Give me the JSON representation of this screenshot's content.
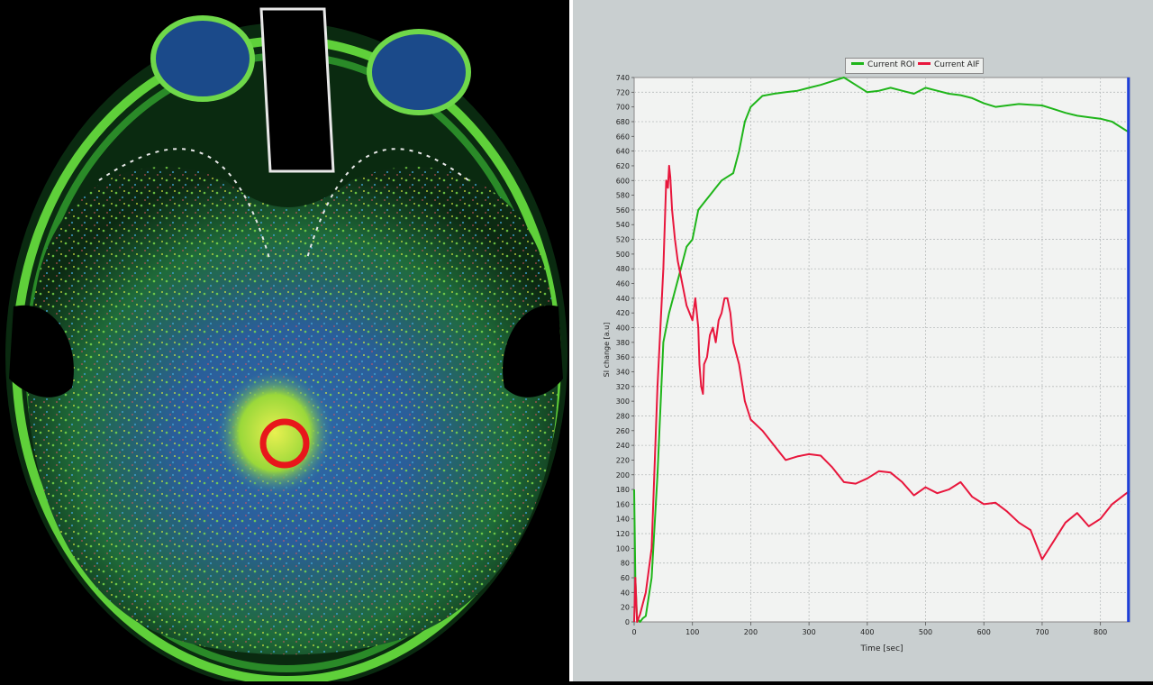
{
  "image": {
    "description_icon": "brain-perfusion-map-icon",
    "roi_color": "#e8161b"
  },
  "chart_data": {
    "type": "line",
    "xlabel": "Time [sec]",
    "ylabel": "SI change [a.u]",
    "xlim": [
      0,
      850
    ],
    "ylim": [
      0,
      740
    ],
    "x_ticks": [
      0,
      100,
      200,
      300,
      400,
      500,
      600,
      700,
      800
    ],
    "y_ticks": [
      0,
      20,
      40,
      60,
      80,
      100,
      120,
      140,
      160,
      180,
      200,
      220,
      240,
      260,
      280,
      300,
      320,
      340,
      360,
      380,
      400,
      420,
      440,
      460,
      480,
      500,
      520,
      540,
      560,
      580,
      600,
      620,
      640,
      660,
      680,
      700,
      720,
      740
    ],
    "grid": true,
    "legend_position": "top-center",
    "cursor_x": 848,
    "series": [
      {
        "name": "Current ROI",
        "color": "#1fb51a",
        "x": [
          0,
          2,
          5,
          10,
          15,
          20,
          30,
          40,
          50,
          60,
          70,
          80,
          90,
          100,
          110,
          120,
          130,
          140,
          150,
          160,
          170,
          180,
          190,
          200,
          220,
          240,
          260,
          280,
          300,
          320,
          340,
          360,
          380,
          400,
          420,
          440,
          460,
          480,
          500,
          520,
          540,
          560,
          580,
          600,
          620,
          640,
          660,
          680,
          700,
          720,
          740,
          760,
          780,
          800,
          820,
          840,
          850
        ],
        "values": [
          180,
          60,
          5,
          0,
          5,
          8,
          60,
          200,
          380,
          420,
          450,
          480,
          510,
          520,
          560,
          570,
          580,
          590,
          600,
          605,
          610,
          640,
          680,
          700,
          715,
          718,
          720,
          722,
          726,
          730,
          735,
          740,
          730,
          720,
          722,
          726,
          722,
          718,
          726,
          722,
          718,
          716,
          712,
          705,
          700,
          702,
          704,
          703,
          702,
          697,
          692,
          688,
          686,
          684,
          680,
          670,
          665
        ]
      },
      {
        "name": "Current AIF",
        "color": "#e8163c",
        "x": [
          0,
          2,
          5,
          10,
          20,
          30,
          40,
          50,
          55,
          58,
          60,
          62,
          65,
          70,
          75,
          80,
          85,
          90,
          95,
          100,
          105,
          110,
          112,
          115,
          118,
          120,
          125,
          130,
          135,
          140,
          145,
          150,
          155,
          160,
          165,
          170,
          180,
          190,
          200,
          220,
          240,
          260,
          280,
          300,
          320,
          340,
          360,
          380,
          400,
          420,
          440,
          460,
          480,
          500,
          520,
          540,
          560,
          580,
          600,
          620,
          640,
          660,
          680,
          700,
          720,
          740,
          760,
          780,
          800,
          820,
          840,
          850
        ],
        "values": [
          0,
          60,
          0,
          10,
          40,
          100,
          320,
          480,
          600,
          590,
          620,
          605,
          560,
          520,
          490,
          470,
          450,
          430,
          420,
          410,
          440,
          400,
          350,
          320,
          310,
          350,
          360,
          390,
          400,
          380,
          410,
          420,
          440,
          440,
          420,
          380,
          350,
          300,
          275,
          260,
          240,
          220,
          225,
          228,
          226,
          210,
          190,
          188,
          195,
          205,
          203,
          190,
          172,
          183,
          175,
          180,
          190,
          170,
          160,
          162,
          150,
          135,
          125,
          85,
          110,
          135,
          148,
          130,
          140,
          160,
          172,
          178
        ]
      }
    ]
  }
}
